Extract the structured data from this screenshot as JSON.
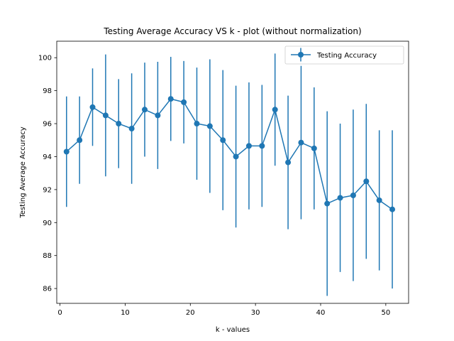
{
  "chart_data": {
    "type": "line",
    "title": "Testing Average Accuracy VS k - plot (without normalization)",
    "xlabel": "k - values",
    "ylabel": "Testing Average Accuracy",
    "xlim": [
      -0.5,
      53.5
    ],
    "ylim": [
      85.1,
      101.0
    ],
    "xticks": [
      0,
      10,
      20,
      30,
      40,
      50
    ],
    "yticks": [
      86,
      88,
      90,
      92,
      94,
      96,
      98,
      100
    ],
    "grid": false,
    "legend_position": "top-right",
    "series": [
      {
        "name": "Testing Accuracy",
        "color": "#1f77b4",
        "x": [
          1,
          3,
          5,
          7,
          9,
          11,
          13,
          15,
          17,
          19,
          21,
          23,
          25,
          27,
          29,
          31,
          33,
          35,
          37,
          39,
          41,
          43,
          45,
          47,
          49,
          51
        ],
        "y": [
          94.3,
          95.0,
          97.0,
          96.5,
          96.0,
          95.7,
          96.85,
          96.5,
          97.5,
          97.3,
          96.0,
          95.85,
          95.0,
          94.0,
          94.65,
          94.65,
          96.85,
          93.65,
          94.85,
          94.5,
          91.15,
          91.5,
          91.65,
          92.5,
          91.35,
          90.8
        ],
        "yerr": [
          3.35,
          2.65,
          2.35,
          3.7,
          2.7,
          3.35,
          2.85,
          3.25,
          2.55,
          2.5,
          3.4,
          4.05,
          4.25,
          4.3,
          3.85,
          3.7,
          3.4,
          4.05,
          4.65,
          3.7,
          5.6,
          4.5,
          5.2,
          4.7,
          4.25,
          4.8
        ]
      }
    ]
  }
}
